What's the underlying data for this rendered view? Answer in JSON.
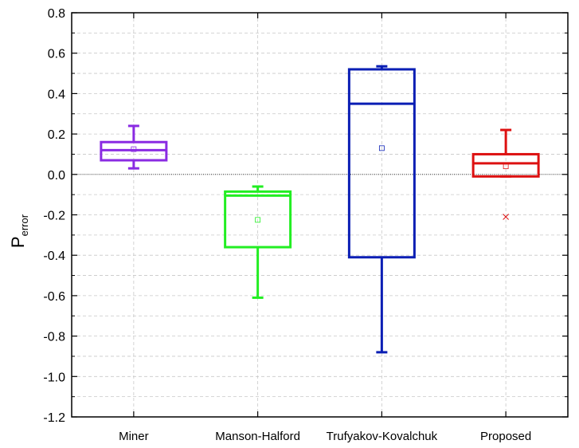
{
  "chart_data": {
    "type": "box",
    "title": "",
    "xlabel": "",
    "ylabel_main": "P",
    "ylabel_sub": "error",
    "ylim": [
      -1.2,
      0.8
    ],
    "y_major_step": 0.2,
    "y_ticks": [
      "0.8",
      "0.6",
      "0.4",
      "0.2",
      "0.0",
      "-0.2",
      "-0.4",
      "-0.6",
      "-0.8",
      "-1.0",
      "-1.2"
    ],
    "grid": true,
    "categories": [
      "Miner",
      "Manson-Halford",
      "Trufyakov-Kovalchuk",
      "Proposed"
    ],
    "boxes": [
      {
        "color": "#8a2be2",
        "whisker_low": 0.03,
        "q1": 0.07,
        "median": 0.12,
        "q3": 0.16,
        "whisker_high": 0.24,
        "mean": 0.125,
        "outliers": []
      },
      {
        "color": "#22ee22",
        "whisker_low": -0.61,
        "q1": -0.36,
        "median": -0.105,
        "q3": -0.085,
        "whisker_high": -0.06,
        "mean": -0.225,
        "outliers": []
      },
      {
        "color": "#0a1eb4",
        "whisker_low": -0.88,
        "q1": -0.41,
        "median": 0.35,
        "q3": 0.52,
        "whisker_high": 0.535,
        "mean": 0.13,
        "outliers": []
      },
      {
        "color": "#dd1111",
        "whisker_low": -0.01,
        "q1": -0.01,
        "median": 0.055,
        "q3": 0.1,
        "whisker_high": 0.22,
        "mean": 0.04,
        "outliers": [
          -0.21
        ]
      }
    ]
  }
}
